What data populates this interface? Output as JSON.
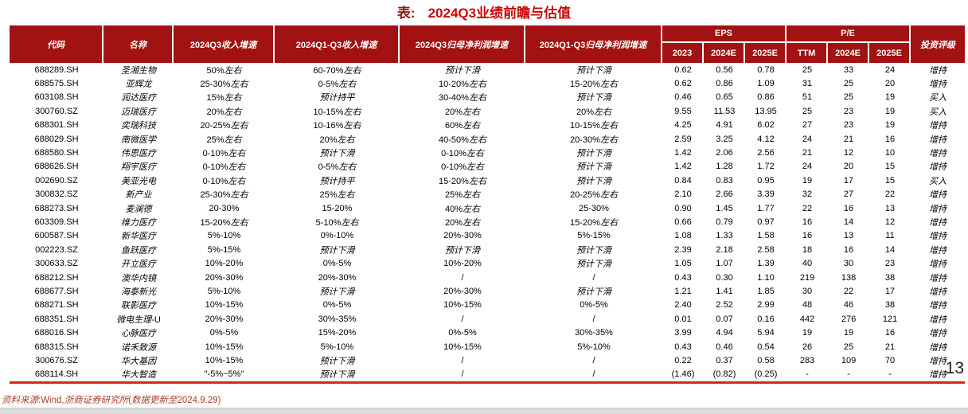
{
  "title": {
    "prefix": "表:",
    "main": "2024Q3业绩前瞻与估值"
  },
  "colors": {
    "header_bg": "#A21212",
    "title_main": "#C80A0A",
    "title_prefix": "#8B1A10",
    "footer_text": "#A8402E",
    "bottom_line": "#D3291B"
  },
  "table": {
    "headers": {
      "code": "代码",
      "name": "名称",
      "q3_revenue_growth": "2024Q3收入增速",
      "q1q3_revenue_growth": "2024Q1-Q3收入增速",
      "q3_net_profit_growth": "2024Q3归母净利润增速",
      "q1q3_net_profit_growth": "2024Q1-Q3归母净利润增速",
      "eps_group": "EPS",
      "pe_group": "P/E",
      "eps_subs": [
        "2023",
        "2024E",
        "2025E"
      ],
      "pe_subs": [
        "TTM",
        "2024E",
        "2025E"
      ],
      "rating": "投资评级"
    },
    "rows": [
      [
        "688289.SH",
        "圣湘生物",
        "50%左右",
        "60-70%左右",
        "预计下滑",
        "预计下滑",
        "0.62",
        "0.56",
        "0.78",
        "25",
        "33",
        "24",
        "增持"
      ],
      [
        "688575.SH",
        "亚辉龙",
        "25-30%左右",
        "0-5%左右",
        "10-20%左右",
        "15-20%左右",
        "0.62",
        "0.86",
        "1.09",
        "31",
        "25",
        "20",
        "增持"
      ],
      [
        "603108.SH",
        "润达医疗",
        "15%左右",
        "预计持平",
        "30-40%左右",
        "预计下滑",
        "0.46",
        "0.65",
        "0.86",
        "51",
        "25",
        "19",
        "买入"
      ],
      [
        "300760.SZ",
        "迈瑞医疗",
        "20%左右",
        "10-15%左右",
        "20%左右",
        "20%左右",
        "9.55",
        "11.53",
        "13.95",
        "25",
        "23",
        "19",
        "买入"
      ],
      [
        "688301.SH",
        "奕瑞科技",
        "20-25%左右",
        "10-16%左右",
        "60%左右",
        "10-15%左右",
        "4.25",
        "4.91",
        "6.02",
        "27",
        "23",
        "19",
        "增持"
      ],
      [
        "688029.SH",
        "南微医学",
        "25%左右",
        "20%左右",
        "40-50%左右",
        "20-30%左右",
        "2.59",
        "3.25",
        "4.12",
        "24",
        "21",
        "16",
        "增持"
      ],
      [
        "688580.SH",
        "伟思医疗",
        "0-10%左右",
        "预计下滑",
        "0-10%左右",
        "预计下滑",
        "1.42",
        "2.06",
        "2.56",
        "21",
        "12",
        "10",
        "增持"
      ],
      [
        "688626.SH",
        "翔宇医疗",
        "0-10%左右",
        "0-5%左右",
        "0-10%左右",
        "预计下滑",
        "1.42",
        "1.28",
        "1.72",
        "24",
        "20",
        "15",
        "增持"
      ],
      [
        "002690.SZ",
        "美亚光电",
        "0-10%左右",
        "预计持平",
        "15-20%左右",
        "预计下滑",
        "0.84",
        "0.83",
        "0.95",
        "19",
        "17",
        "15",
        "买入"
      ],
      [
        "300832.SZ",
        "新产业",
        "25-30%左右",
        "25%左右",
        "25%左右",
        "20-25%左右",
        "2.10",
        "2.66",
        "3.39",
        "32",
        "27",
        "22",
        "增持"
      ],
      [
        "688273.SH",
        "麦澜德",
        "20-30%",
        "15-20%",
        "40%左右",
        "25-30%",
        "0.90",
        "1.45",
        "1.77",
        "22",
        "16",
        "13",
        "增持"
      ],
      [
        "603309.SH",
        "维力医疗",
        "15-20%左右",
        "5-10%左右",
        "20%左右",
        "15-20%左右",
        "0.66",
        "0.79",
        "0.97",
        "16",
        "14",
        "12",
        "增持"
      ],
      [
        "600587.SH",
        "新华医疗",
        "5%-10%",
        "0%-10%",
        "20%-30%",
        "5%-15%",
        "1.08",
        "1.33",
        "1.58",
        "16",
        "13",
        "11",
        "增持"
      ],
      [
        "002223.SZ",
        "鱼跃医疗",
        "5%-15%",
        "预计下滑",
        "预计下滑",
        "预计下滑",
        "2.39",
        "2.18",
        "2.58",
        "18",
        "16",
        "14",
        "增持"
      ],
      [
        "300633.SZ",
        "开立医疗",
        "10%-20%",
        "0%-5%",
        "10%-20%",
        "预计下滑",
        "1.05",
        "1.07",
        "1.39",
        "40",
        "30",
        "23",
        "增持"
      ],
      [
        "688212.SH",
        "澳华内镜",
        "20%-30%",
        "20%-30%",
        "/",
        "/",
        "0.43",
        "0.30",
        "1.10",
        "219",
        "138",
        "38",
        "增持"
      ],
      [
        "688677.SH",
        "海泰新光",
        "5%-10%",
        "预计下滑",
        "20%-30%",
        "预计下滑",
        "1.21",
        "1.41",
        "1.85",
        "30",
        "22",
        "17",
        "增持"
      ],
      [
        "688271.SH",
        "联影医疗",
        "10%-15%",
        "0%-5%",
        "10%-15%",
        "0%-5%",
        "2.40",
        "2.52",
        "2.99",
        "48",
        "46",
        "38",
        "增持"
      ],
      [
        "688351.SH",
        "微电生理-U",
        "20%-30%",
        "30%-35%",
        "/",
        "/",
        "0.01",
        "0.07",
        "0.16",
        "442",
        "276",
        "121",
        "增持"
      ],
      [
        "688016.SH",
        "心脉医疗",
        "0%-5%",
        "15%-20%",
        "0%-5%",
        "30%-35%",
        "3.99",
        "4.94",
        "5.94",
        "19",
        "19",
        "16",
        "增持"
      ],
      [
        "688315.SH",
        "诺禾致源",
        "10%-15%",
        "5%-10%",
        "10%-15%",
        "5%-10%",
        "0.43",
        "0.46",
        "0.54",
        "26",
        "25",
        "21",
        "增持"
      ],
      [
        "300676.SZ",
        "华大基因",
        "10%-15%",
        "预计下滑",
        "/",
        "/",
        "0.22",
        "0.37",
        "0.58",
        "283",
        "109",
        "70",
        "增持"
      ],
      [
        "688114.SH",
        "华大智造",
        "\"-5%~5%\"",
        "预计下滑",
        "/",
        "/",
        "(1.46)",
        "(0.82)",
        "(0.25)",
        "-",
        "-",
        "-",
        "增持"
      ]
    ]
  },
  "footer": {
    "source": "资料来源:Wind,浙商证券研究所(数据更新至2024.9.29)"
  },
  "page_number": "13"
}
